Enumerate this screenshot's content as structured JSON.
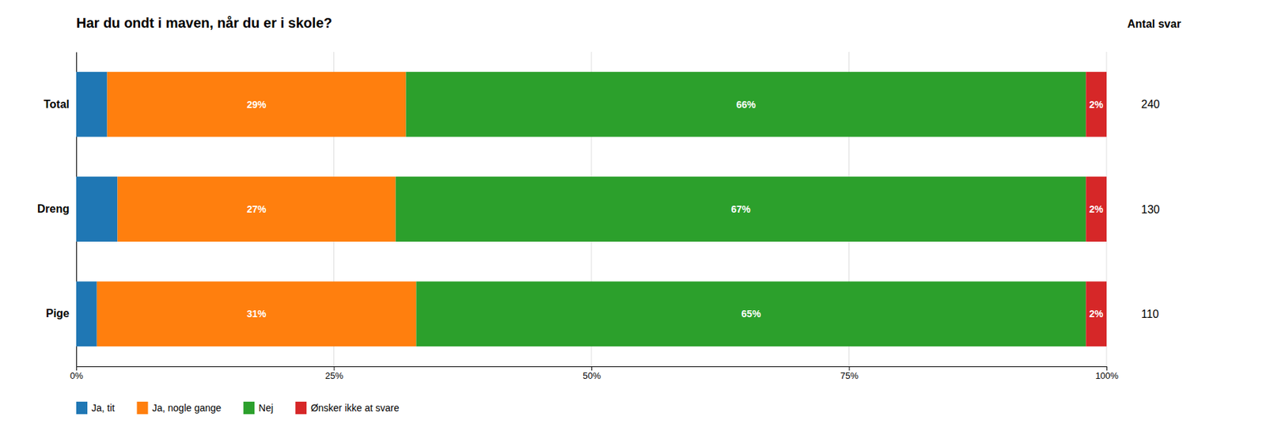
{
  "chart_data": {
    "type": "bar",
    "orientation": "horizontal",
    "stacked": true,
    "title": "Har du ondt i maven, når du er i skole?",
    "categories": [
      "Total",
      "Dreng",
      "Pige"
    ],
    "series": [
      {
        "name": "Ja, tit",
        "values": [
          3,
          4,
          2
        ],
        "data_labels": false
      },
      {
        "name": "Ja, nogle gange",
        "values": [
          29,
          27,
          31
        ],
        "value_labels": [
          "29%",
          "27%",
          "31%"
        ],
        "data_labels": true
      },
      {
        "name": "Nej",
        "values": [
          66,
          67,
          65
        ],
        "value_labels": [
          "66%",
          "67%",
          "65%"
        ],
        "data_labels": true
      },
      {
        "name": "Ønsker ikke at svare",
        "values": [
          2,
          2,
          2
        ],
        "value_labels": [
          "2%",
          "2%",
          "2%"
        ],
        "data_labels": true
      }
    ],
    "counts_title": "Antal svar",
    "counts": [
      240,
      130,
      110
    ],
    "xlim": [
      0,
      100
    ],
    "xticks": [
      {
        "value": 0,
        "label": "0%"
      },
      {
        "value": 25,
        "label": "25%"
      },
      {
        "value": 50,
        "label": "50%"
      },
      {
        "value": 75,
        "label": "75%"
      },
      {
        "value": 100,
        "label": "100%"
      }
    ],
    "grid": true,
    "legend": "bottom"
  }
}
